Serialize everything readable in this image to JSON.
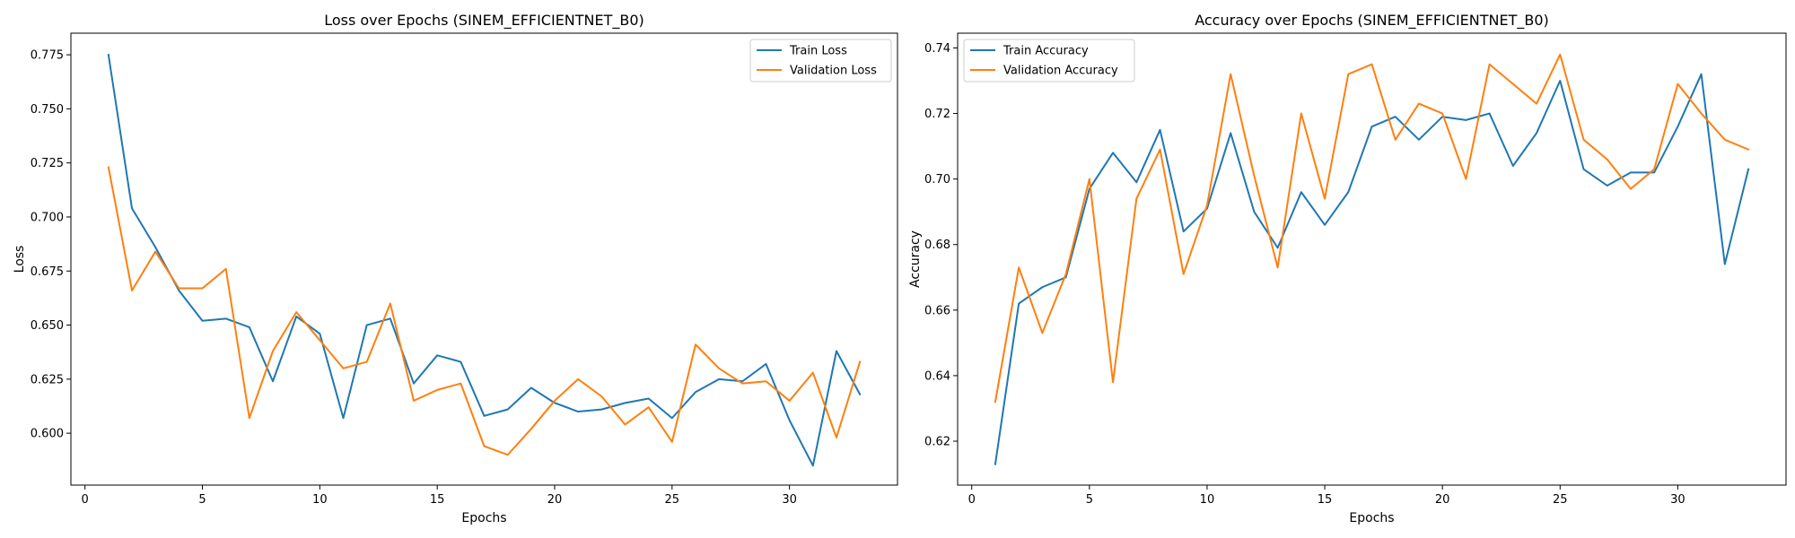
{
  "colors": {
    "train": "#1f77b4",
    "validation": "#ff7f0e"
  },
  "chart_data": [
    {
      "type": "line",
      "title": "Loss over Epochs (SINEM_EFFICIENTNET_B0)",
      "xlabel": "Epochs",
      "ylabel": "Loss",
      "xlim": [
        -0.6,
        34.6
      ],
      "ylim": [
        0.576,
        0.785
      ],
      "xticks": [
        0,
        5,
        10,
        15,
        20,
        25,
        30
      ],
      "xtick_labels": [
        "0",
        "5",
        "10",
        "15",
        "20",
        "25",
        "30"
      ],
      "yticks": [
        0.6,
        0.625,
        0.65,
        0.675,
        0.7,
        0.725,
        0.75,
        0.775
      ],
      "ytick_labels": [
        "0.600",
        "0.625",
        "0.650",
        "0.675",
        "0.700",
        "0.725",
        "0.750",
        "0.775"
      ],
      "grid": false,
      "legend": "top-right",
      "x": [
        1,
        2,
        3,
        4,
        5,
        6,
        7,
        8,
        9,
        10,
        11,
        12,
        13,
        14,
        15,
        16,
        17,
        18,
        19,
        20,
        21,
        22,
        23,
        24,
        25,
        26,
        27,
        28,
        29,
        30,
        31,
        32,
        33
      ],
      "series": [
        {
          "name": "Train Loss",
          "color": "#1f77b4",
          "values": [
            0.775,
            0.704,
            0.686,
            0.666,
            0.652,
            0.653,
            0.649,
            0.624,
            0.654,
            0.646,
            0.607,
            0.65,
            0.653,
            0.623,
            0.636,
            0.633,
            0.608,
            0.611,
            0.621,
            0.614,
            0.61,
            0.611,
            0.614,
            0.616,
            0.607,
            0.619,
            0.625,
            0.624,
            0.632,
            0.606,
            0.585,
            0.638,
            0.618
          ]
        },
        {
          "name": "Validation Loss",
          "color": "#ff7f0e",
          "values": [
            0.723,
            0.666,
            0.684,
            0.667,
            0.667,
            0.676,
            0.607,
            0.638,
            0.656,
            0.643,
            0.63,
            0.633,
            0.66,
            0.615,
            0.62,
            0.623,
            0.594,
            0.59,
            0.602,
            0.615,
            0.625,
            0.617,
            0.604,
            0.612,
            0.596,
            0.641,
            0.63,
            0.623,
            0.624,
            0.615,
            0.628,
            0.598,
            0.633
          ]
        }
      ]
    },
    {
      "type": "line",
      "title": "Accuracy over Epochs (SINEM_EFFICIENTNET_B0)",
      "xlabel": "Epochs",
      "ylabel": "Accuracy",
      "xlim": [
        -0.6,
        34.6
      ],
      "ylim": [
        0.6066,
        0.7445
      ],
      "xticks": [
        0,
        5,
        10,
        15,
        20,
        25,
        30
      ],
      "xtick_labels": [
        "0",
        "5",
        "10",
        "15",
        "20",
        "25",
        "30"
      ],
      "yticks": [
        0.62,
        0.64,
        0.66,
        0.68,
        0.7,
        0.72,
        0.74
      ],
      "ytick_labels": [
        "0.62",
        "0.64",
        "0.66",
        "0.68",
        "0.70",
        "0.72",
        "0.74"
      ],
      "grid": false,
      "legend": "top-left",
      "x": [
        1,
        2,
        3,
        4,
        5,
        6,
        7,
        8,
        9,
        10,
        11,
        12,
        13,
        14,
        15,
        16,
        17,
        18,
        19,
        20,
        21,
        22,
        23,
        24,
        25,
        26,
        27,
        28,
        29,
        30,
        31,
        32,
        33
      ],
      "series": [
        {
          "name": "Train Accuracy",
          "color": "#1f77b4",
          "values": [
            0.613,
            0.662,
            0.667,
            0.67,
            0.697,
            0.708,
            0.699,
            0.715,
            0.684,
            0.691,
            0.714,
            0.69,
            0.679,
            0.696,
            0.686,
            0.696,
            0.716,
            0.719,
            0.712,
            0.719,
            0.718,
            0.72,
            0.704,
            0.714,
            0.73,
            0.703,
            0.698,
            0.702,
            0.702,
            0.716,
            0.732,
            0.674,
            0.703
          ]
        },
        {
          "name": "Validation Accuracy",
          "color": "#ff7f0e",
          "values": [
            0.632,
            0.673,
            0.653,
            0.671,
            0.7,
            0.638,
            0.694,
            0.709,
            0.671,
            0.692,
            0.732,
            0.701,
            0.673,
            0.72,
            0.694,
            0.732,
            0.735,
            0.712,
            0.723,
            0.72,
            0.7,
            0.735,
            0.729,
            0.723,
            0.738,
            0.712,
            0.706,
            0.697,
            0.703,
            0.729,
            0.72,
            0.712,
            0.709
          ]
        }
      ]
    }
  ]
}
